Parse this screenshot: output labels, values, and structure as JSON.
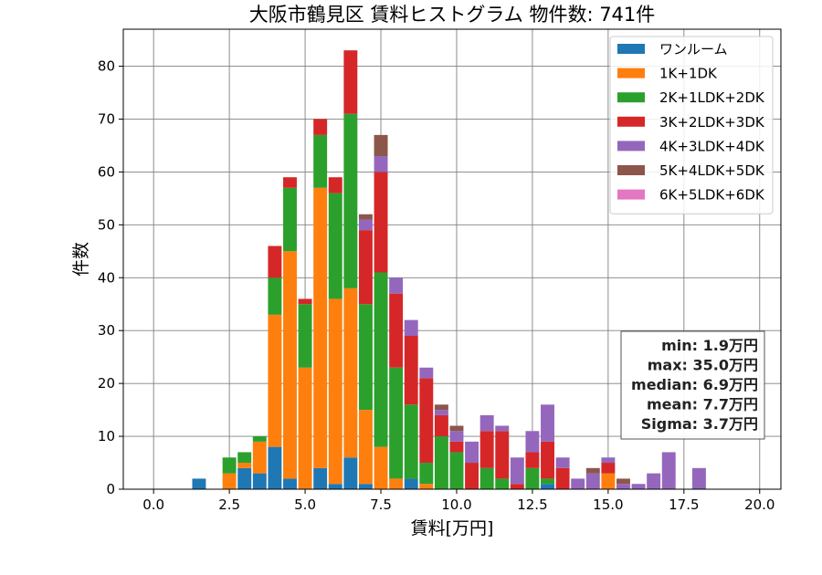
{
  "chart_data": {
    "type": "bar",
    "stacked": true,
    "title": "大阪市鶴見区 賃料ヒストグラム 物件数: 741件",
    "xlabel": "賃料[万円]",
    "ylabel": "件数",
    "xlim": [
      -1.0,
      20.7
    ],
    "ylim": [
      0,
      87
    ],
    "xticks": [
      0.0,
      2.5,
      5.0,
      7.5,
      10.0,
      12.5,
      15.0,
      17.5,
      20.0
    ],
    "xtick_labels": [
      "0.0",
      "2.5",
      "5.0",
      "7.5",
      "10.0",
      "12.5",
      "15.0",
      "17.5",
      "20.0"
    ],
    "yticks": [
      0,
      10,
      20,
      30,
      40,
      50,
      60,
      70,
      80
    ],
    "ytick_labels": [
      "0",
      "10",
      "20",
      "30",
      "40",
      "50",
      "60",
      "70",
      "80"
    ],
    "grid": true,
    "legend_position": "top-right",
    "bin_width": 0.5,
    "x": [
      1.5,
      2.5,
      3.0,
      3.5,
      4.0,
      4.5,
      5.0,
      5.5,
      6.0,
      6.5,
      7.0,
      7.5,
      8.0,
      8.5,
      9.0,
      9.5,
      10.0,
      10.5,
      11.0,
      11.5,
      12.0,
      12.5,
      13.0,
      13.5,
      14.0,
      14.5,
      15.0,
      15.5,
      16.0,
      16.5,
      17.0,
      18.0
    ],
    "series": [
      {
        "name": "ワンルーム",
        "color": "#1f77b4",
        "values": [
          2,
          0,
          4,
          3,
          8,
          2,
          0,
          4,
          1,
          6,
          1,
          0,
          0,
          2,
          0,
          0,
          0,
          0,
          0,
          0,
          0,
          0,
          1,
          0,
          0,
          0,
          0,
          0,
          0,
          0,
          0,
          0
        ]
      },
      {
        "name": "1K+1DK",
        "color": "#ff7f0e",
        "values": [
          0,
          3,
          1,
          6,
          25,
          43,
          23,
          53,
          35,
          32,
          14,
          8,
          2,
          0,
          1,
          0,
          0,
          0,
          0,
          0,
          0,
          0,
          0,
          0,
          0,
          0,
          3,
          0,
          0,
          0,
          0,
          0
        ]
      },
      {
        "name": "2K+1LDK+2DK",
        "color": "#2ca02c",
        "values": [
          0,
          3,
          2,
          1,
          7,
          12,
          12,
          10,
          20,
          33,
          20,
          33,
          21,
          14,
          4,
          10,
          7,
          0,
          4,
          2,
          0,
          4,
          1,
          0,
          0,
          0,
          0,
          0,
          0,
          0,
          0,
          0
        ]
      },
      {
        "name": "3K+2LDK+3DK",
        "color": "#d62728",
        "values": [
          0,
          0,
          0,
          0,
          6,
          2,
          1,
          3,
          3,
          12,
          14,
          19,
          14,
          13,
          16,
          4,
          2,
          5,
          7,
          9,
          1,
          3,
          7,
          4,
          0,
          0,
          2,
          0,
          0,
          0,
          0,
          0
        ]
      },
      {
        "name": "4K+3LDK+4DK",
        "color": "#9467bd",
        "values": [
          0,
          0,
          0,
          0,
          0,
          0,
          0,
          0,
          0,
          0,
          2,
          3,
          3,
          3,
          2,
          1,
          2,
          4,
          3,
          1,
          5,
          4,
          7,
          2,
          2,
          3,
          1,
          1,
          1,
          3,
          7,
          4
        ]
      },
      {
        "name": "5K+4LDK+5DK",
        "color": "#8c564b",
        "values": [
          0,
          0,
          0,
          0,
          0,
          0,
          0,
          0,
          0,
          0,
          1,
          4,
          0,
          0,
          0,
          1,
          1,
          0,
          0,
          0,
          0,
          0,
          0,
          0,
          0,
          1,
          0,
          1,
          0,
          0,
          0,
          0
        ]
      },
      {
        "name": "6K+5LDK+6DK",
        "color": "#e377c2",
        "values": [
          0,
          0,
          0,
          0,
          0,
          0,
          0,
          0,
          0,
          0,
          0,
          0,
          0,
          0,
          0,
          0,
          0,
          0,
          0,
          0,
          0,
          0,
          0,
          0,
          0,
          0,
          0,
          0,
          0,
          0,
          0,
          0
        ]
      }
    ],
    "stats": {
      "min": "min: 1.9万円",
      "max": "max: 35.0万円",
      "median": "median: 6.9万円",
      "mean": "mean: 7.7万円",
      "sigma": "Sigma: 3.7万円"
    }
  }
}
